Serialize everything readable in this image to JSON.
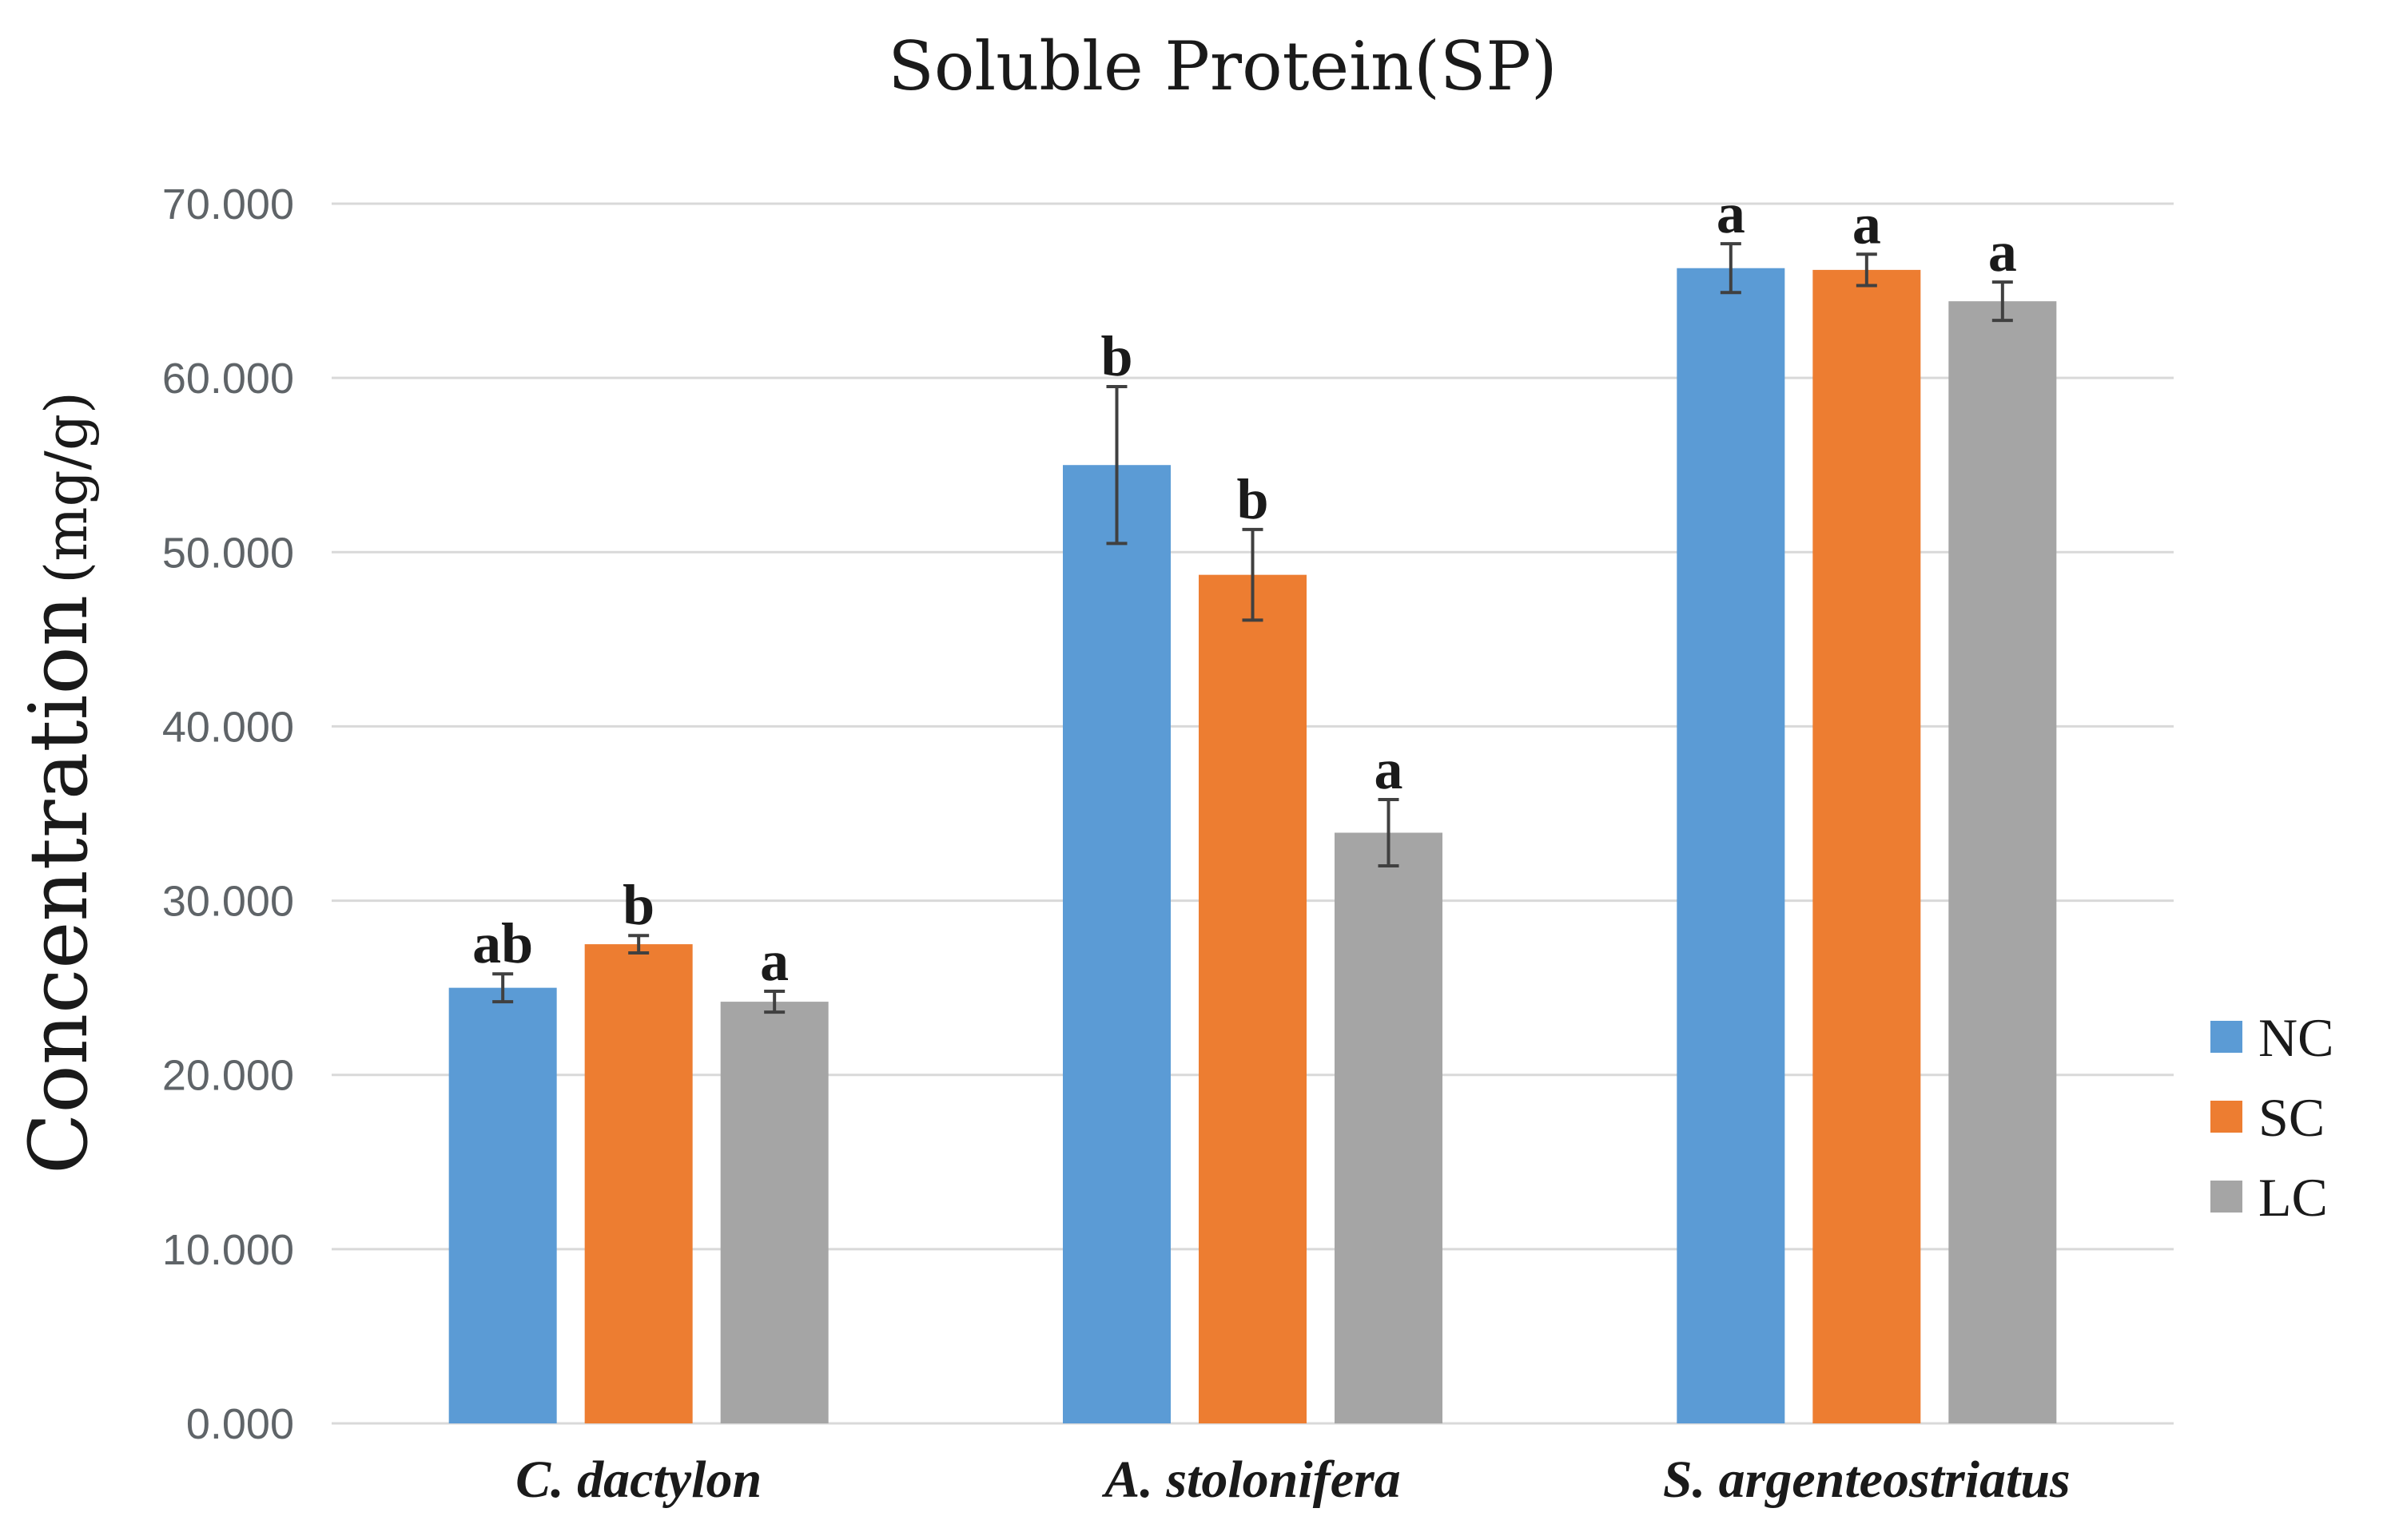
{
  "chart_data": {
    "type": "bar",
    "title": "Soluble Protein(SP)",
    "ylabel_main": "Concentration",
    "ylabel_unit": "(mg/g)",
    "xlabel": "",
    "ylim": [
      0,
      70
    ],
    "yticks": [
      0,
      10,
      20,
      30,
      40,
      50,
      60,
      70
    ],
    "ytick_labels": [
      "0.000",
      "10.000",
      "20.000",
      "30.000",
      "40.000",
      "50.000",
      "60.000",
      "70.000"
    ],
    "categories": [
      "C. dactylon",
      "A. stolonifera",
      "S. argenteostriatus"
    ],
    "grid": true,
    "legend_position": "right",
    "series": [
      {
        "name": "NC",
        "color": "#5b9bd5",
        "values": [
          25.0,
          55.0,
          66.3
        ],
        "errors": [
          0.8,
          4.5,
          1.4
        ],
        "sig": [
          "ab",
          "b",
          "a"
        ]
      },
      {
        "name": "SC",
        "color": "#ed7d31",
        "values": [
          27.5,
          48.7,
          66.2
        ],
        "errors": [
          0.5,
          2.6,
          0.9
        ],
        "sig": [
          "b",
          "b",
          "a"
        ]
      },
      {
        "name": "LC",
        "color": "#a5a5a5",
        "values": [
          24.2,
          33.9,
          64.4
        ],
        "errors": [
          0.6,
          1.9,
          1.1
        ],
        "sig": [
          "a",
          "a",
          "a"
        ]
      }
    ]
  }
}
